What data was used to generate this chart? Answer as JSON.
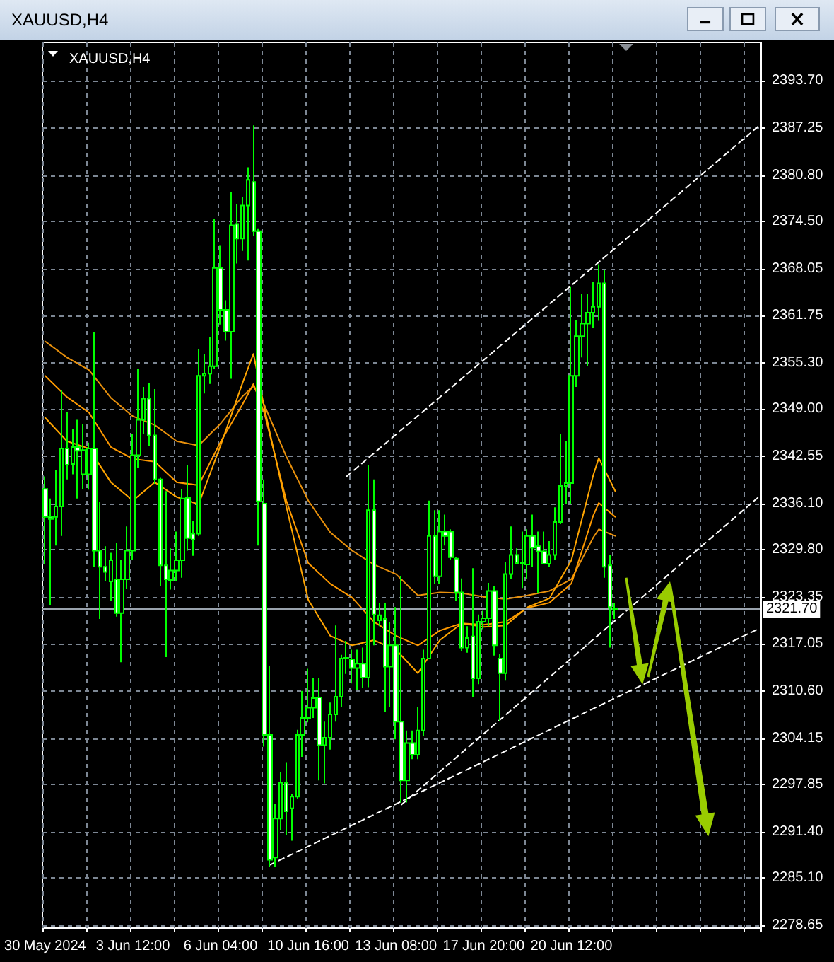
{
  "chart_data": {
    "type": "candlestick",
    "title": "XAUUSD,H4",
    "subtitle": "XAUUSD,H4",
    "color": "#00ff00",
    "grid": true,
    "marker": "none",
    "categories": [
      "30 May 2024",
      null,
      null,
      null,
      null,
      null,
      null,
      null,
      null,
      null,
      null,
      null,
      null,
      null,
      null,
      null,
      "3 Jun 12:00",
      null,
      null,
      null,
      null,
      null,
      null,
      null,
      null,
      null,
      null,
      null,
      null,
      null,
      null,
      null,
      "6 Jun 04:00",
      null,
      null,
      null,
      null,
      null,
      null,
      null,
      null,
      null,
      null,
      null,
      null,
      null,
      null,
      null,
      "10 Jun 16:00",
      null,
      null,
      null,
      null,
      null,
      null,
      null,
      null,
      null,
      null,
      null,
      null,
      null,
      null,
      null,
      "13 Jun 08:00",
      null,
      null,
      null,
      null,
      null,
      null,
      null,
      null,
      null,
      null,
      null,
      null,
      null,
      null,
      null,
      "17 Jun 20:00",
      null,
      null,
      null,
      null,
      null,
      null,
      null,
      null,
      null,
      null,
      null,
      null,
      null,
      null,
      null,
      "20 Jun 12:00",
      null,
      null,
      null,
      null,
      null,
      null,
      null,
      null,
      null,
      null,
      null,
      null,
      null,
      null,
      null,
      null,
      null,
      null,
      null,
      null,
      null,
      null,
      null,
      null,
      null,
      null,
      null,
      null,
      null,
      null,
      null,
      null,
      null,
      null
    ],
    "ohlc": [
      [
        2338.1,
        2339.8,
        2327.8,
        2334.3
      ],
      [
        2334.3,
        2336.8,
        2322.3,
        2334.0
      ],
      [
        2334.3,
        2340.7,
        2330.4,
        2335.7
      ],
      [
        2335.7,
        2351.6,
        2331.7,
        2343.6
      ],
      [
        2343.6,
        2348.6,
        2339.4,
        2341.4
      ],
      [
        2341.5,
        2346.2,
        2340.1,
        2343.8
      ],
      [
        2343.8,
        2347.5,
        2336.8,
        2343.3
      ],
      [
        2340.1,
        2346.9,
        2338.1,
        2343.4
      ],
      [
        2340.1,
        2344.4,
        2338.0,
        2343.6
      ],
      [
        2343.6,
        2359.5,
        2327.5,
        2329.7
      ],
      [
        2329.7,
        2336.3,
        2320.4,
        2327.5
      ],
      [
        2327.5,
        2330.3,
        2325.5,
        2326.8
      ],
      [
        2325.5,
        2329.4,
        2322.9,
        2328.4
      ],
      [
        2325.8,
        2330.7,
        2320.7,
        2321.2
      ],
      [
        2321.2,
        2328.4,
        2314.5,
        2325.8
      ],
      [
        2325.8,
        2333.0,
        2324.5,
        2329.7
      ],
      [
        2329.7,
        2345.6,
        2328.4,
        2342.7
      ],
      [
        2342.7,
        2354.4,
        2341.0,
        2347.5
      ],
      [
        2347.5,
        2352.0,
        2345.6,
        2350.4
      ],
      [
        2350.4,
        2352.5,
        2344.0,
        2345.4
      ],
      [
        2345.4,
        2351.7,
        2338.8,
        2339.4
      ],
      [
        2339.4,
        2339.6,
        2324.9,
        2327.7
      ],
      [
        2327.7,
        2337.8,
        2315.2,
        2325.8
      ],
      [
        2325.7,
        2330.0,
        2324.4,
        2327.0
      ],
      [
        2327.0,
        2332.3,
        2325.5,
        2328.4
      ],
      [
        2328.4,
        2338.1,
        2326.0,
        2336.8
      ],
      [
        2336.9,
        2341.4,
        2329.7,
        2331.4
      ],
      [
        2332.0,
        2333.7,
        2329.0,
        2331.2
      ],
      [
        2332.0,
        2357.1,
        2331.7,
        2353.5
      ],
      [
        2353.5,
        2356.5,
        2351.1,
        2353.8
      ],
      [
        2353.8,
        2358.8,
        2352.4,
        2354.8
      ],
      [
        2354.8,
        2374.9,
        2354.5,
        2368.2
      ],
      [
        2368.2,
        2371.2,
        2360.5,
        2362.5
      ],
      [
        2362.5,
        2363.8,
        2358.3,
        2359.5
      ],
      [
        2359.5,
        2378.5,
        2353.1,
        2374.0
      ],
      [
        2374.2,
        2376.9,
        2368.8,
        2372.2
      ],
      [
        2372.2,
        2377.9,
        2370.5,
        2376.7
      ],
      [
        2376.7,
        2381.9,
        2369.2,
        2380.2
      ],
      [
        2379.9,
        2387.6,
        2372.5,
        2373.2
      ],
      [
        2373.2,
        2373.5,
        2330.4,
        2336.4
      ],
      [
        2336.1,
        2339.4,
        2303.0,
        2304.6
      ],
      [
        2304.6,
        2314.0,
        2286.6,
        2287.6
      ],
      [
        2287.9,
        2295.2,
        2286.6,
        2293.2
      ],
      [
        2293.2,
        2299.6,
        2291.6,
        2298.1
      ],
      [
        2298.1,
        2300.9,
        2291.0,
        2294.2
      ],
      [
        2294.6,
        2296.6,
        2290.2,
        2296.2
      ],
      [
        2296.2,
        2305.3,
        2295.9,
        2304.6
      ],
      [
        2304.6,
        2310.6,
        2301.6,
        2306.9
      ],
      [
        2306.9,
        2313.6,
        2306.3,
        2308.3
      ],
      [
        2308.3,
        2312.3,
        2306.9,
        2309.6
      ],
      [
        2309.7,
        2312.3,
        2298.4,
        2303.2
      ],
      [
        2303.2,
        2306.4,
        2298.0,
        2304.2
      ],
      [
        2304.2,
        2309.0,
        2302.6,
        2307.4
      ],
      [
        2307.4,
        2319.5,
        2306.4,
        2309.8
      ],
      [
        2309.8,
        2315.5,
        2308.4,
        2315.0
      ],
      [
        2315.0,
        2317.4,
        2312.9,
        2315.1
      ],
      [
        2314.9,
        2316.2,
        2311.6,
        2313.7
      ],
      [
        2313.7,
        2316.2,
        2310.7,
        2314.3
      ],
      [
        2314.3,
        2316.5,
        2311.0,
        2312.4
      ],
      [
        2312.4,
        2341.4,
        2311.1,
        2335.2
      ],
      [
        2335.2,
        2339.4,
        2316.8,
        2321.0
      ],
      [
        2320.2,
        2322.6,
        2319.4,
        2320.9
      ],
      [
        2320.4,
        2322.6,
        2307.7,
        2313.9
      ],
      [
        2313.9,
        2320.0,
        2308.4,
        2316.8
      ],
      [
        2316.8,
        2322.0,
        2304.0,
        2306.4
      ],
      [
        2306.4,
        2326.2,
        2295.4,
        2298.4
      ],
      [
        2298.4,
        2305.2,
        2295.4,
        2303.5
      ],
      [
        2303.5,
        2305.2,
        2301.3,
        2301.9
      ],
      [
        2301.9,
        2308.4,
        2301.3,
        2305.2
      ],
      [
        2305.2,
        2316.2,
        2304.5,
        2315.0
      ],
      [
        2315.0,
        2336.5,
        2315.0,
        2331.7
      ],
      [
        2331.7,
        2335.2,
        2325.2,
        2326.2
      ],
      [
        2326.2,
        2335.2,
        2325.2,
        2332.3
      ],
      [
        2332.3,
        2334.6,
        2330.4,
        2331.7
      ],
      [
        2332.3,
        2332.6,
        2328.4,
        2328.8
      ],
      [
        2328.6,
        2328.8,
        2322.9,
        2324.0
      ],
      [
        2324.0,
        2325.9,
        2316.0,
        2316.5
      ],
      [
        2316.5,
        2319.4,
        2315.8,
        2317.8
      ],
      [
        2318.0,
        2327.3,
        2309.7,
        2312.3
      ],
      [
        2312.3,
        2321.0,
        2311.5,
        2320.0
      ],
      [
        2320.0,
        2321.5,
        2319.0,
        2320.5
      ],
      [
        2320.5,
        2325.3,
        2319.4,
        2324.2
      ],
      [
        2324.2,
        2324.9,
        2315.4,
        2316.8
      ],
      [
        2315.0,
        2315.6,
        2306.5,
        2313.0
      ],
      [
        2313.0,
        2328.1,
        2312.0,
        2326.5
      ],
      [
        2326.5,
        2333.0,
        2325.8,
        2329.1
      ],
      [
        2329.1,
        2330.0,
        2327.8,
        2328.0
      ],
      [
        2328.1,
        2332.3,
        2324.6,
        2327.9
      ],
      [
        2327.8,
        2332.6,
        2325.8,
        2331.7
      ],
      [
        2331.7,
        2334.6,
        2327.5,
        2330.1
      ],
      [
        2330.3,
        2332.3,
        2323.9,
        2329.6
      ],
      [
        2329.6,
        2332.3,
        2327.8,
        2327.9
      ],
      [
        2327.9,
        2331.0,
        2327.5,
        2329.1
      ],
      [
        2329.1,
        2335.6,
        2328.4,
        2333.6
      ],
      [
        2333.6,
        2345.6,
        2333.3,
        2338.5
      ],
      [
        2338.5,
        2344.6,
        2336.0,
        2338.9
      ],
      [
        2338.9,
        2365.6,
        2336.0,
        2353.5
      ],
      [
        2353.5,
        2361.1,
        2352.0,
        2358.9
      ],
      [
        2358.9,
        2364.7,
        2356.0,
        2360.6
      ],
      [
        2360.6,
        2364.7,
        2354.8,
        2362.1
      ],
      [
        2362.1,
        2366.3,
        2360.0,
        2362.9
      ],
      [
        2362.9,
        2368.7,
        2361.0,
        2366.1
      ],
      [
        2366.1,
        2367.9,
        2326.0,
        2327.5
      ],
      [
        2327.7,
        2329.1,
        2316.5,
        2322.0
      ],
      [
        2321.8,
        2322.6,
        2320.4,
        2321.7
      ],
      null,
      null,
      null,
      null,
      null,
      null,
      null,
      null,
      null,
      null,
      null,
      null,
      null,
      null,
      null,
      null,
      null,
      null,
      null,
      null,
      null,
      null,
      null,
      null,
      null,
      null
    ],
    "series": [
      {
        "type": "line",
        "color": "#e8900c",
        "line_style": "solid",
        "values": [
          2358.2,
          null,
          null,
          null,
          2356.0,
          null,
          null,
          null,
          2354.3,
          null,
          null,
          null,
          2350.5,
          null,
          null,
          null,
          2348.0,
          null,
          null,
          null,
          2346.8,
          null,
          null,
          null,
          2344.6,
          null,
          null,
          null,
          2344.0,
          null,
          null,
          null,
          2347.0,
          null,
          null,
          null,
          2350.7,
          null,
          2352.1,
          null,
          2349.5,
          null,
          null,
          null,
          2342.5,
          null,
          null,
          null,
          2336.5,
          null,
          null,
          null,
          2332.2,
          null,
          null,
          null,
          2329.7,
          null,
          null,
          null,
          2327.8,
          null,
          null,
          null,
          2326.5,
          null,
          null,
          null,
          2323.6,
          null,
          null,
          null,
          2324.0,
          null,
          null,
          null,
          2323.9,
          null,
          null,
          null,
          2323.4,
          null,
          null,
          null,
          2323.1,
          null,
          null,
          null,
          2323.6,
          null,
          null,
          null,
          2324.2,
          null,
          null,
          null,
          2325.8,
          null,
          null,
          null,
          2331.5,
          2332.6,
          null,
          null,
          2331.7,
          null,
          null,
          null,
          null,
          null,
          null,
          null,
          null,
          null,
          null,
          null,
          null,
          null,
          null,
          null,
          null,
          null,
          null,
          null,
          null,
          null,
          null,
          null,
          null,
          null,
          null
        ]
      },
      {
        "type": "line",
        "color": "#ff9a00",
        "line_style": "solid",
        "values": [
          2353.5,
          null,
          null,
          null,
          2350.6,
          null,
          null,
          null,
          2348.5,
          null,
          null,
          null,
          2343.8,
          null,
          null,
          null,
          2342.2,
          null,
          null,
          null,
          2341.8,
          null,
          null,
          null,
          2339.0,
          null,
          null,
          null,
          2338.6,
          null,
          null,
          null,
          2344.5,
          null,
          null,
          null,
          2349.6,
          null,
          2352.4,
          null,
          2348.4,
          null,
          null,
          null,
          2336.5,
          null,
          null,
          null,
          2328.0,
          null,
          null,
          null,
          2325.2,
          null,
          null,
          null,
          2323.3,
          null,
          null,
          null,
          2320.0,
          null,
          null,
          null,
          2318.1,
          null,
          null,
          null,
          2316.8,
          null,
          null,
          null,
          2318.8,
          null,
          null,
          null,
          2319.8,
          null,
          null,
          null,
          2319.6,
          null,
          null,
          null,
          2320.0,
          null,
          null,
          null,
          2321.9,
          null,
          null,
          null,
          2322.6,
          null,
          null,
          null,
          2325.2,
          null,
          null,
          null,
          2334.5,
          2336.2,
          null,
          null,
          2334.3,
          null,
          null,
          null,
          null,
          null,
          null,
          null,
          null,
          null,
          null,
          null,
          null,
          null,
          null,
          null,
          null,
          null,
          null,
          null,
          null,
          null,
          null,
          null,
          null,
          null,
          null
        ]
      },
      {
        "type": "line",
        "color": "#ffa500",
        "line_style": "solid",
        "values": [
          2347.8,
          null,
          null,
          null,
          2344.6,
          null,
          null,
          null,
          2343.6,
          null,
          null,
          null,
          2339.0,
          null,
          null,
          null,
          2336.5,
          null,
          null,
          null,
          2339.0,
          null,
          null,
          null,
          2337.0,
          null,
          null,
          null,
          2336.0,
          null,
          null,
          null,
          2344.0,
          null,
          null,
          null,
          2352.5,
          null,
          2356.5,
          null,
          2349.1,
          null,
          null,
          null,
          2335.7,
          null,
          null,
          null,
          2323.0,
          null,
          null,
          null,
          2318.1,
          null,
          null,
          null,
          2316.8,
          null,
          null,
          null,
          2317.5,
          null,
          null,
          null,
          2316.2,
          null,
          null,
          null,
          2313.0,
          null,
          null,
          null,
          2317.5,
          null,
          null,
          null,
          2319.8,
          null,
          null,
          null,
          2319.3,
          null,
          null,
          null,
          2319.5,
          null,
          null,
          null,
          2322.0,
          null,
          null,
          null,
          2323.2,
          null,
          null,
          null,
          2328.4,
          null,
          null,
          null,
          2340.0,
          2342.3,
          null,
          null,
          2337.8,
          null,
          null,
          null,
          null,
          null,
          null,
          null,
          null,
          null,
          null,
          null,
          null,
          null,
          null,
          null,
          null,
          null,
          null,
          null,
          null,
          null,
          null,
          null,
          null,
          null,
          null
        ]
      },
      {
        "type": "line",
        "color": "#ffffff",
        "line_style": "dashed",
        "values": [
          null,
          null,
          null,
          null,
          null,
          null,
          null,
          null,
          null,
          null,
          null,
          null,
          null,
          null,
          null,
          null,
          null,
          null,
          null,
          null,
          null,
          null,
          null,
          null,
          null,
          null,
          null,
          null,
          null,
          null,
          null,
          null,
          null,
          null,
          null,
          null,
          null,
          null,
          null,
          null,
          null,
          null,
          null,
          null,
          null,
          null,
          null,
          null,
          null,
          null,
          null,
          null,
          null,
          null,
          null,
          2339.8,
          null,
          null,
          null,
          null,
          null,
          null,
          null,
          null,
          null,
          null,
          null,
          null,
          null,
          null,
          null,
          null,
          null,
          null,
          null,
          null,
          null,
          null,
          null,
          null,
          null,
          null,
          null,
          null,
          null,
          null,
          null,
          null,
          null,
          null,
          null,
          null,
          null,
          null,
          null,
          null,
          null,
          null,
          null,
          null,
          null,
          null,
          null,
          null,
          null,
          null,
          null,
          null,
          null,
          null,
          null,
          null,
          null,
          null,
          null,
          null,
          null,
          null,
          null,
          null,
          null,
          null,
          null,
          null,
          null,
          null,
          null,
          null,
          null,
          null,
          2387.4
        ]
      },
      {
        "type": "line",
        "color": "#ffffff",
        "line_style": "dashed",
        "values": [
          null,
          null,
          null,
          null,
          null,
          null,
          null,
          null,
          null,
          null,
          null,
          null,
          null,
          null,
          null,
          null,
          null,
          null,
          null,
          null,
          null,
          null,
          null,
          null,
          null,
          null,
          null,
          null,
          null,
          null,
          null,
          null,
          null,
          null,
          null,
          null,
          null,
          null,
          null,
          null,
          null,
          null,
          null,
          null,
          null,
          null,
          null,
          null,
          null,
          null,
          null,
          null,
          null,
          null,
          null,
          null,
          null,
          null,
          null,
          null,
          null,
          null,
          null,
          null,
          null,
          2295.1,
          null,
          null,
          null,
          null,
          null,
          null,
          null,
          null,
          null,
          null,
          null,
          null,
          null,
          null,
          null,
          null,
          null,
          null,
          null,
          null,
          null,
          null,
          null,
          null,
          null,
          null,
          null,
          null,
          null,
          null,
          null,
          null,
          null,
          null,
          null,
          null,
          null,
          null,
          null,
          null,
          null,
          null,
          null,
          null,
          null,
          null,
          null,
          null,
          null,
          null,
          null,
          null,
          null,
          null,
          null,
          null,
          null,
          null,
          null,
          null,
          null,
          null,
          null,
          null,
          2336.9
        ]
      },
      {
        "type": "line",
        "color": "#ffffff",
        "line_style": "dashed",
        "values": [
          null,
          null,
          null,
          null,
          null,
          null,
          null,
          null,
          null,
          null,
          null,
          null,
          null,
          null,
          null,
          null,
          null,
          null,
          null,
          null,
          null,
          null,
          null,
          null,
          null,
          null,
          null,
          null,
          null,
          null,
          null,
          null,
          null,
          null,
          null,
          null,
          null,
          null,
          null,
          null,
          null,
          2286.9,
          null,
          null,
          null,
          null,
          null,
          null,
          null,
          null,
          null,
          null,
          null,
          null,
          null,
          null,
          null,
          null,
          null,
          null,
          null,
          null,
          null,
          null,
          null,
          null,
          null,
          null,
          null,
          null,
          null,
          null,
          null,
          null,
          null,
          null,
          null,
          null,
          null,
          null,
          null,
          null,
          null,
          null,
          null,
          null,
          null,
          null,
          null,
          null,
          null,
          null,
          null,
          null,
          null,
          null,
          null,
          null,
          null,
          null,
          null,
          null,
          null,
          null,
          null,
          null,
          null,
          null,
          null,
          null,
          null,
          null,
          null,
          null,
          null,
          null,
          null,
          null,
          null,
          null,
          null,
          null,
          null,
          null,
          null,
          null,
          null,
          null,
          null,
          null,
          2319.0
        ]
      }
    ],
    "ref_lines": [
      {
        "axis": "y",
        "value": 2321.7,
        "label": "2321.70",
        "color": "#9aa3ad"
      }
    ],
    "ylim": [
      2278.3,
      2398.9
    ],
    "yticks": [
      {
        "value": 2393.7,
        "label": "2393.70"
      },
      {
        "value": 2387.25,
        "label": "2387.25"
      },
      {
        "value": 2380.8,
        "label": "2380.80"
      },
      {
        "value": 2374.5,
        "label": "2374.50"
      },
      {
        "value": 2368.05,
        "label": "2368.05"
      },
      {
        "value": 2361.75,
        "label": "2361.75"
      },
      {
        "value": 2355.3,
        "label": "2355.30"
      },
      {
        "value": 2349,
        "label": "2349.00"
      },
      {
        "value": 2342.55,
        "label": "2342.55"
      },
      {
        "value": 2336.1,
        "label": "2336.10"
      },
      {
        "value": 2329.8,
        "label": "2329.80"
      },
      {
        "value": 2323.35,
        "label": "2323.35"
      },
      {
        "value": 2317.05,
        "label": "2317.05"
      },
      {
        "value": 2310.6,
        "label": "2310.60"
      },
      {
        "value": 2304.15,
        "label": "2304.15"
      },
      {
        "value": 2297.85,
        "label": "2297.85"
      },
      {
        "value": 2291.4,
        "label": "2291.40"
      },
      {
        "value": 2285.1,
        "label": "2285.10"
      },
      {
        "value": 2278.65,
        "label": "2278.65"
      }
    ]
  }
}
